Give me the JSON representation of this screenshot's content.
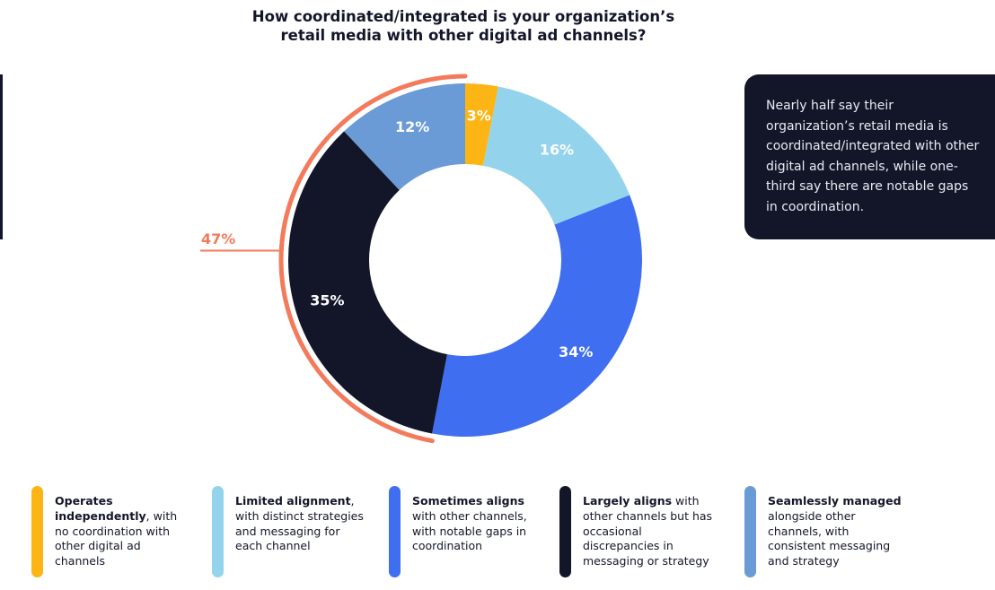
{
  "title": {
    "line1": "How coordinated/integrated is your organization’s",
    "line2": "retail media with other digital ad channels?"
  },
  "callout": {
    "text": "Nearly half say their organization’s retail media is coordinated/integrated with other digital ad channels, while one-third say there are notable gaps in coordination."
  },
  "colors": {
    "accent_arc": "#f47a5c",
    "dark": "#131629"
  },
  "chart_data": {
    "type": "pie",
    "variant": "donut",
    "categories": [
      "Operates independently",
      "Limited alignment",
      "Sometimes aligns",
      "Largely aligns",
      "Seamlessly managed"
    ],
    "values": [
      3,
      16,
      34,
      35,
      12
    ],
    "labels": [
      "3%",
      "16%",
      "34%",
      "35%",
      "12%"
    ],
    "colors": [
      "#fdb515",
      "#93d4ec",
      "#3f6ef0",
      "#131629",
      "#6a9bd6"
    ],
    "label_colors": [
      "#ffffff",
      "#ffffff",
      "#ffffff",
      "#ffffff",
      "#ffffff"
    ],
    "start_angle_deg": 0,
    "direction": "clockwise",
    "legend_position": "bottom",
    "annotation": {
      "label": "47%",
      "value": 47,
      "spans_categories": [
        "Largely aligns",
        "Seamlessly managed"
      ],
      "color": "#f47a5c"
    }
  },
  "legend": [
    {
      "bold": "Operates independently",
      "rest": ", with no coordination with other digital ad channels",
      "color": "#fdb515"
    },
    {
      "bold": "Limited alignment",
      "rest": ", with distinct strategies and messaging for each channel",
      "color": "#93d4ec"
    },
    {
      "bold": "Sometimes aligns",
      "rest": " with other channels, with notable gaps in coordination",
      "color": "#3f6ef0"
    },
    {
      "bold": "Largely aligns",
      "rest": " with other channels but has occasional discrepancies in messaging or strategy",
      "color": "#131629"
    },
    {
      "bold": "Seamlessly managed",
      "rest": " alongside other channels, with consistent messaging and strategy",
      "color": "#6a9bd6"
    }
  ]
}
